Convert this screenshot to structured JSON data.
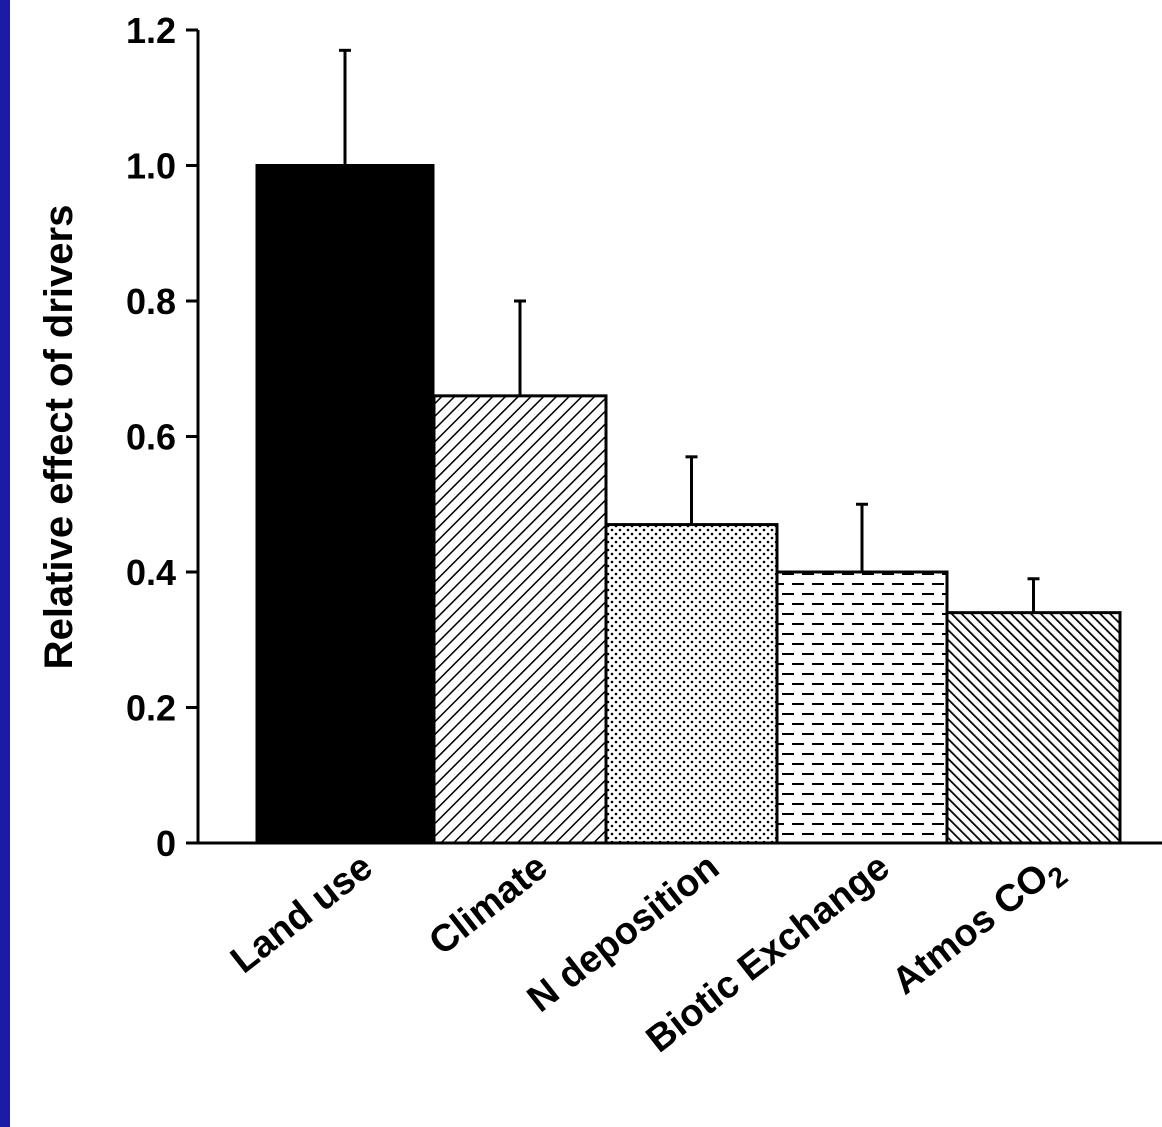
{
  "background_color": "#1d1aa6",
  "chart_data": {
    "type": "bar",
    "title": "",
    "xlabel": "",
    "ylabel": "Relative effect of drivers",
    "ylim": [
      0,
      1.2
    ],
    "yticks": [
      "0",
      "0.2",
      "0.4",
      "0.6",
      "0.8",
      "1.0",
      "1.2"
    ],
    "grid": false,
    "categories": [
      "Land use",
      "Climate",
      "N deposition",
      "Biotic Exchange",
      "Atmos CO2"
    ],
    "category_labels": [
      {
        "text": "Land use",
        "sub": ""
      },
      {
        "text": "Climate",
        "sub": ""
      },
      {
        "text": "N deposition",
        "sub": ""
      },
      {
        "text": "Biotic Exchange",
        "sub": ""
      },
      {
        "text": "Atmos CO",
        "sub": "2"
      }
    ],
    "values": [
      1.0,
      0.66,
      0.47,
      0.4,
      0.34
    ],
    "error_upper": [
      1.17,
      0.8,
      0.57,
      0.5,
      0.39
    ],
    "fill_patterns": [
      "solid-black",
      "diagonal-hatch-fine",
      "dots",
      "dashes",
      "diagonal-hatch-dense"
    ]
  }
}
